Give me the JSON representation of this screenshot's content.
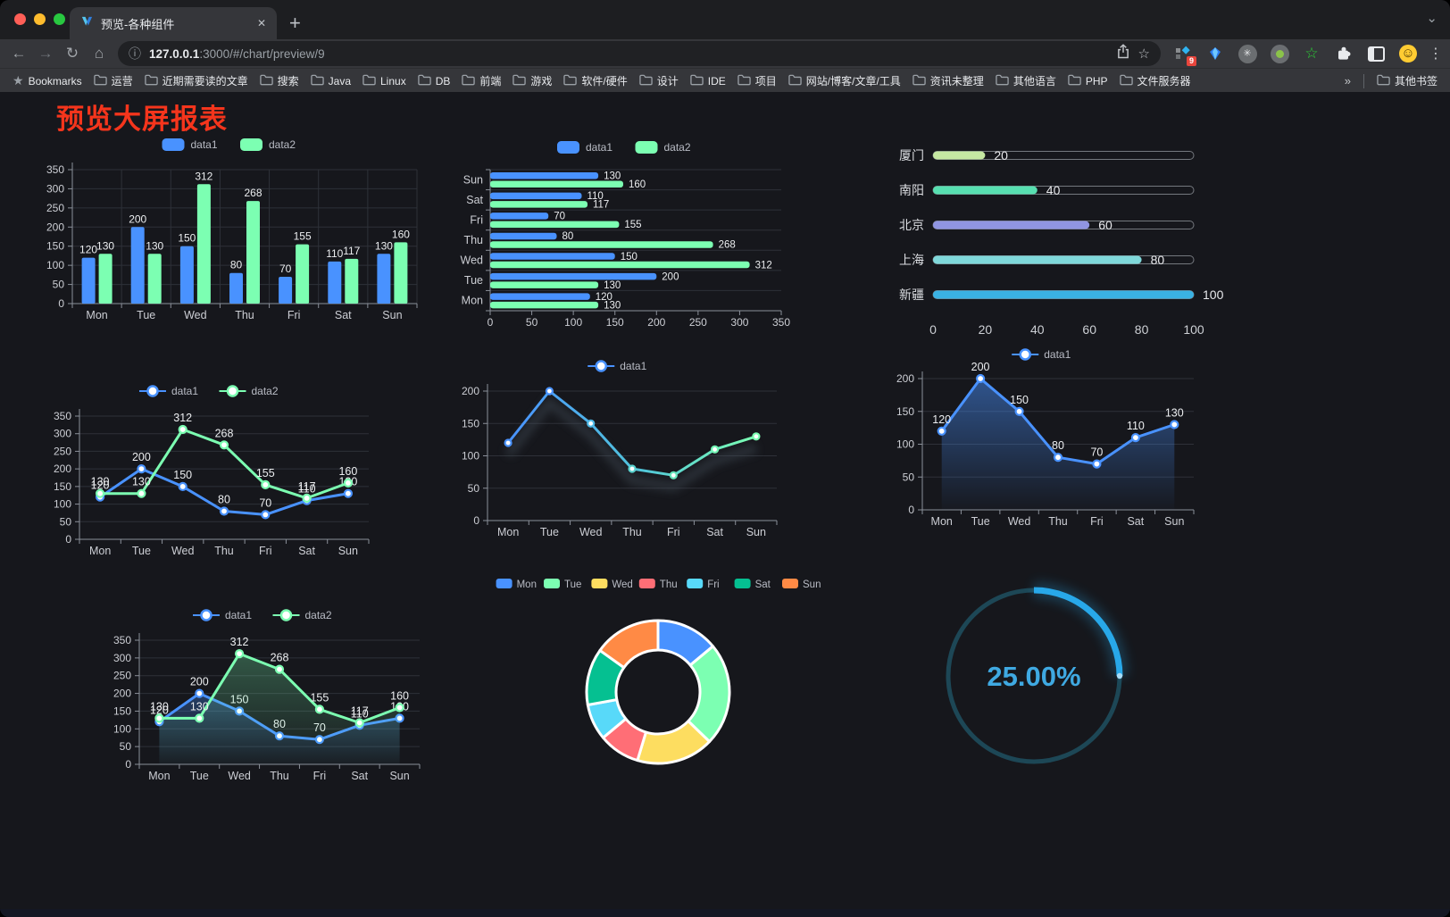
{
  "browser": {
    "tab_title": "预览-各种组件",
    "url_host": "127.0.0.1",
    "url_rest": ":3000/#/chart/preview/9",
    "extension_badge": "9",
    "bookmarks_label": "Bookmarks",
    "bookmarks": [
      "运营",
      "近期需要读的文章",
      "搜索",
      "Java",
      "Linux",
      "DB",
      "前端",
      "游戏",
      "软件/硬件",
      "设计",
      "IDE",
      "项目",
      "网站/博客/文章/工具",
      "资讯未整理",
      "其他语言",
      "PHP",
      "文件服务器"
    ],
    "overflow_chevron": "»",
    "other_bookmarks": "其他书签",
    "icons": {
      "back": "←",
      "forward": "→",
      "reload": "↻",
      "home": "⌂",
      "info": "ⓘ",
      "page_star": "☆",
      "bookmark_star": "★",
      "menu": "⋮",
      "strip_chevron": "⌄",
      "tab_close": "✕",
      "new_tab": "+",
      "circle_asterisk": "✳",
      "green_star": "☆",
      "emoji_face": "☺",
      "gem": ""
    }
  },
  "page": {
    "title": "预览大屏报表",
    "title_color": "#f5351c",
    "background": "#16171c"
  },
  "chart_data": [
    {
      "id": "bar-vertical",
      "type": "bar",
      "categories": [
        "Mon",
        "Tue",
        "Wed",
        "Thu",
        "Fri",
        "Sat",
        "Sun"
      ],
      "series": [
        {
          "name": "data1",
          "color": "#4992ff",
          "values": [
            120,
            200,
            150,
            80,
            70,
            110,
            130
          ]
        },
        {
          "name": "data2",
          "color": "#7cffb2",
          "values": [
            130,
            130,
            312,
            268,
            155,
            117,
            160
          ]
        }
      ],
      "ylim": [
        0,
        350
      ],
      "ytick_step": 50,
      "legend_position": "top",
      "grid": true,
      "value_labels": true
    },
    {
      "id": "bar-horizontal",
      "type": "bar-horizontal",
      "categories": [
        "Mon",
        "Tue",
        "Wed",
        "Thu",
        "Fri",
        "Sat",
        "Sun"
      ],
      "series": [
        {
          "name": "data1",
          "color": "#4992ff",
          "values": [
            120,
            200,
            150,
            80,
            70,
            110,
            130
          ]
        },
        {
          "name": "data2",
          "color": "#7cffb2",
          "values": [
            130,
            130,
            312,
            268,
            155,
            117,
            160
          ]
        }
      ],
      "xlim": [
        0,
        350
      ],
      "xtick_step": 50,
      "legend_position": "top",
      "value_labels": true
    },
    {
      "id": "progress",
      "type": "progress-bars",
      "max": 100,
      "items": [
        {
          "label": "厦门",
          "value": 20,
          "color": "#c5e8a2"
        },
        {
          "label": "南阳",
          "value": 40,
          "color": "#57dfb0"
        },
        {
          "label": "北京",
          "value": 60,
          "color": "#9095e2"
        },
        {
          "label": "上海",
          "value": 80,
          "color": "#7fd8da"
        },
        {
          "label": "新疆",
          "value": 100,
          "color": "#3ab2e3"
        }
      ],
      "xticks": [
        0,
        20,
        40,
        60,
        80,
        100
      ]
    },
    {
      "id": "line-dual",
      "type": "line",
      "categories": [
        "Mon",
        "Tue",
        "Wed",
        "Thu",
        "Fri",
        "Sat",
        "Sun"
      ],
      "series": [
        {
          "name": "data1",
          "color": "#4992ff",
          "values": [
            120,
            200,
            150,
            80,
            70,
            110,
            130
          ]
        },
        {
          "name": "data2",
          "color": "#7cffb2",
          "values": [
            130,
            130,
            312,
            268,
            155,
            117,
            160
          ]
        }
      ],
      "ylim": [
        0,
        350
      ],
      "ytick_step": 50,
      "legend_position": "top",
      "value_labels": true
    },
    {
      "id": "line-gradient",
      "type": "line",
      "variant": "gradient",
      "categories": [
        "Mon",
        "Tue",
        "Wed",
        "Thu",
        "Fri",
        "Sat",
        "Sun"
      ],
      "series": [
        {
          "name": "data1",
          "color": "#4992ff",
          "gradient": [
            "#4992ff",
            "#7cffb2"
          ],
          "values": [
            120,
            200,
            150,
            80,
            70,
            110,
            130
          ]
        }
      ],
      "ylim": [
        0,
        200
      ],
      "ytick_step": 50,
      "legend_position": "top",
      "value_labels": false
    },
    {
      "id": "area-single",
      "type": "area",
      "categories": [
        "Mon",
        "Tue",
        "Wed",
        "Thu",
        "Fri",
        "Sat",
        "Sun"
      ],
      "series": [
        {
          "name": "data1",
          "color": "#4992ff",
          "values": [
            120,
            200,
            150,
            80,
            70,
            110,
            130
          ]
        }
      ],
      "ylim": [
        0,
        200
      ],
      "ytick_step": 50,
      "legend_position": "top",
      "value_labels": true
    },
    {
      "id": "line-area-dual",
      "type": "area",
      "categories": [
        "Mon",
        "Tue",
        "Wed",
        "Thu",
        "Fri",
        "Sat",
        "Sun"
      ],
      "series": [
        {
          "name": "data1",
          "color": "#4992ff",
          "values": [
            120,
            200,
            150,
            80,
            70,
            110,
            130
          ]
        },
        {
          "name": "data2",
          "color": "#7cffb2",
          "values": [
            130,
            130,
            312,
            268,
            155,
            117,
            160
          ]
        }
      ],
      "ylim": [
        0,
        350
      ],
      "ytick_step": 50,
      "legend_position": "top",
      "value_labels": true
    },
    {
      "id": "donut",
      "type": "pie",
      "items": [
        {
          "label": "Mon",
          "value": 120,
          "color": "#4992ff"
        },
        {
          "label": "Tue",
          "value": 200,
          "color": "#7cffb2"
        },
        {
          "label": "Wed",
          "value": 150,
          "color": "#fddd60"
        },
        {
          "label": "Thu",
          "value": 80,
          "color": "#ff6e76"
        },
        {
          "label": "Fri",
          "value": 70,
          "color": "#58d9f9"
        },
        {
          "label": "Sat",
          "value": 110,
          "color": "#05c091"
        },
        {
          "label": "Sun",
          "value": 130,
          "color": "#ff8a45"
        }
      ],
      "start_angle": "top",
      "direction": "clockwise",
      "inner_radius_ratio": 0.58
    },
    {
      "id": "gauge",
      "type": "gauge",
      "value": 25,
      "display": "25.00%",
      "min": 0,
      "max": 100,
      "arc_color": "#28a8e9",
      "track_color": "#1d4756",
      "text_color": "#3fa9e2"
    }
  ]
}
